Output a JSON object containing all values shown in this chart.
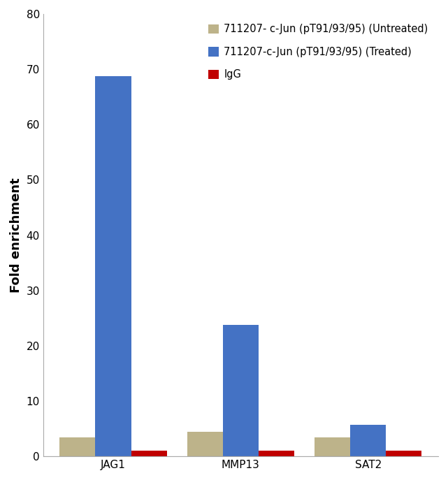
{
  "categories": [
    "JAG1",
    "MMP13",
    "SAT2"
  ],
  "series": [
    {
      "label": "711207- c-Jun (pT91/93/95) (Untreated)",
      "values": [
        3.4,
        4.5,
        3.5
      ],
      "color": "#BDB38A"
    },
    {
      "label": "711207-c-Jun (pT91/93/95) (Treated)",
      "values": [
        68.8,
        23.8,
        5.7
      ],
      "color": "#4472C4"
    },
    {
      "label": "IgG",
      "values": [
        1.0,
        1.0,
        1.0
      ],
      "color": "#C00000"
    }
  ],
  "ylabel": "Fold enrichment",
  "ylim": [
    0,
    80
  ],
  "yticks": [
    0,
    10,
    20,
    30,
    40,
    50,
    60,
    70,
    80
  ],
  "bar_width": 0.28,
  "legend_fontsize": 10.5,
  "ylabel_fontsize": 13,
  "tick_fontsize": 11,
  "background_color": "#FFFFFF",
  "figsize": [
    6.41,
    6.87
  ],
  "dpi": 100
}
